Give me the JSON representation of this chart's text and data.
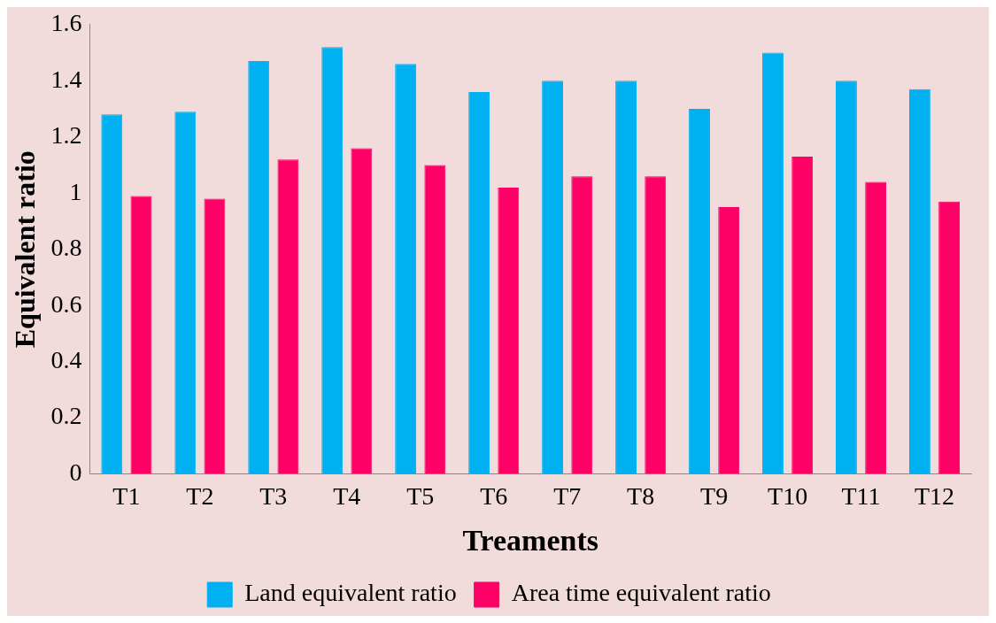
{
  "chart_data": {
    "type": "bar",
    "xlabel": "Treaments",
    "ylabel": "Equivalent ratio",
    "categories": [
      "T1",
      "T2",
      "T3",
      "T4",
      "T5",
      "T6",
      "T7",
      "T8",
      "T9",
      "T10",
      "T11",
      "T12"
    ],
    "series": [
      {
        "name": "Land equivalent ratio",
        "color": "#00b0f0",
        "values": [
          1.28,
          1.29,
          1.47,
          1.52,
          1.46,
          1.36,
          1.4,
          1.4,
          1.3,
          1.5,
          1.4,
          1.37
        ]
      },
      {
        "name": "Area time equivalent ratio",
        "color": "#ff0066",
        "values": [
          0.99,
          0.98,
          1.12,
          1.16,
          1.1,
          1.02,
          1.06,
          1.06,
          0.95,
          1.13,
          1.04,
          0.97
        ]
      }
    ],
    "ylim": [
      0,
      1.6
    ],
    "yticks": [
      0,
      0.2,
      0.4,
      0.6,
      0.8,
      1,
      1.2,
      1.4,
      1.6
    ],
    "grid": false,
    "legend": "bottom"
  }
}
